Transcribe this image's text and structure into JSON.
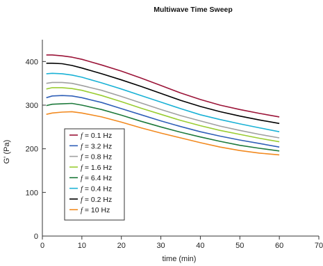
{
  "chart_data": {
    "type": "line",
    "title": "Multiwave Time Sweep",
    "xlabel": "time (min)",
    "ylabel": "G' (Pa)",
    "xlim": [
      0,
      70
    ],
    "ylim": [
      0,
      450
    ],
    "xticks": [
      0,
      10,
      20,
      30,
      40,
      50,
      60,
      70
    ],
    "yticks": [
      0,
      100,
      200,
      300,
      400
    ],
    "grid": false,
    "legend_position": "lower-left",
    "legend_prefix": "f = ",
    "x": [
      1,
      2.5,
      5,
      7.5,
      10,
      15,
      20,
      25,
      30,
      35,
      40,
      45,
      50,
      55,
      60
    ],
    "series": [
      {
        "name": "0.1 Hz",
        "color": "#9b1438",
        "values": [
          415,
          415,
          413,
          410,
          405,
          392,
          378,
          362,
          345,
          328,
          313,
          300,
          290,
          281,
          273
        ]
      },
      {
        "name": "0.2 Hz",
        "color": "#000000",
        "values": [
          396,
          396,
          395,
          391,
          385,
          372,
          358,
          343,
          327,
          311,
          297,
          285,
          275,
          266,
          258
        ]
      },
      {
        "name": "0.4 Hz",
        "color": "#1ab2d6",
        "values": [
          372,
          373,
          372,
          369,
          364,
          351,
          337,
          322,
          307,
          292,
          278,
          267,
          257,
          248,
          239
        ]
      },
      {
        "name": "0.8 Hz",
        "color": "#a0a0a0",
        "values": [
          350,
          352,
          352,
          350,
          345,
          334,
          320,
          305,
          290,
          276,
          264,
          252,
          242,
          233,
          225
        ]
      },
      {
        "name": "1.6 Hz",
        "color": "#9acd32",
        "values": [
          337,
          340,
          340,
          338,
          334,
          322,
          308,
          293,
          279,
          265,
          253,
          242,
          233,
          224,
          216
        ]
      },
      {
        "name": "3.2 Hz",
        "color": "#3060b8",
        "values": [
          317,
          321,
          322,
          321,
          317,
          306,
          292,
          278,
          264,
          251,
          239,
          229,
          220,
          212,
          204
        ]
      },
      {
        "name": "6.4 Hz",
        "color": "#1e7a3c",
        "values": [
          299,
          302,
          303,
          304,
          300,
          290,
          277,
          263,
          250,
          238,
          227,
          217,
          208,
          201,
          195
        ]
      },
      {
        "name": "10 Hz",
        "color": "#f28a20",
        "values": [
          279,
          282,
          284,
          285,
          282,
          273,
          261,
          248,
          236,
          225,
          214,
          204,
          196,
          190,
          186
        ]
      }
    ],
    "legend_order": [
      0,
      5,
      3,
      4,
      6,
      2,
      1,
      7
    ]
  }
}
